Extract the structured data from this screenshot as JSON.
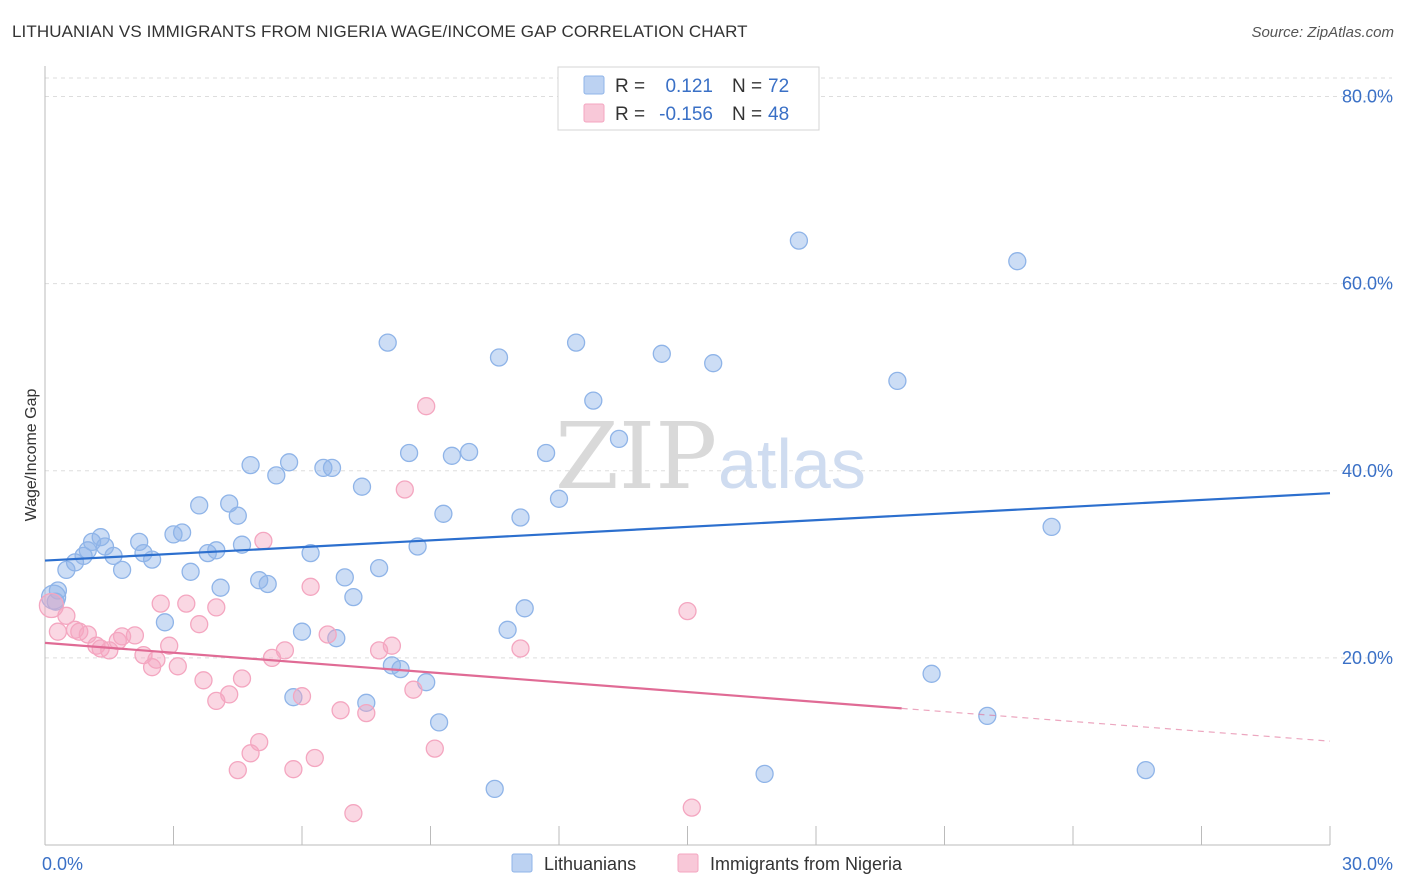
{
  "title": "LITHUANIAN VS IMMIGRANTS FROM NIGERIA WAGE/INCOME GAP CORRELATION CHART",
  "source": "Source: ZipAtlas.com",
  "watermark": {
    "part1": "ZIP",
    "part2": "atlas"
  },
  "legend": {
    "r_label": "R =",
    "n_label": "N =",
    "rows": [
      {
        "r": "0.121",
        "n": "72"
      },
      {
        "r": "-0.156",
        "n": "48"
      }
    ]
  },
  "chart_data": {
    "type": "scatter",
    "title": "LITHUANIAN VS IMMIGRANTS FROM NIGERIA WAGE/INCOME GAP CORRELATION CHART",
    "xlabel": "",
    "ylabel": "Wage/Income Gap",
    "xlim": [
      0,
      30
    ],
    "ylim": [
      0,
      80
    ],
    "x_tick_labels": [
      "0.0%",
      "30.0%"
    ],
    "y_ticks": [
      20,
      40,
      60,
      80
    ],
    "y_tick_labels": [
      "20.0%",
      "40.0%",
      "60.0%",
      "80.0%"
    ],
    "grid": true,
    "legend_position": "top-center",
    "series": [
      {
        "name": "Lithuanians",
        "color": "#8fb4e8",
        "line_color": "#2c6fce",
        "trend": {
          "x0": 0,
          "y0": 30.4,
          "x1": 30,
          "y1": 37.6
        },
        "points": [
          [
            0.2,
            26.5
          ],
          [
            0.3,
            27.2
          ],
          [
            0.5,
            29.4
          ],
          [
            0.7,
            30.2
          ],
          [
            0.9,
            30.9
          ],
          [
            1.1,
            32.4
          ],
          [
            1.3,
            32.9
          ],
          [
            1.4,
            31.9
          ],
          [
            1.6,
            30.9
          ],
          [
            1.8,
            29.4
          ],
          [
            2.2,
            32.4
          ],
          [
            2.3,
            31.2
          ],
          [
            2.5,
            30.5
          ],
          [
            2.8,
            23.8
          ],
          [
            3.0,
            33.2
          ],
          [
            3.2,
            33.4
          ],
          [
            3.4,
            29.2
          ],
          [
            3.6,
            36.3
          ],
          [
            3.8,
            31.2
          ],
          [
            4.0,
            31.5
          ],
          [
            4.1,
            27.5
          ],
          [
            4.3,
            36.5
          ],
          [
            4.5,
            35.2
          ],
          [
            4.6,
            32.1
          ],
          [
            4.8,
            40.6
          ],
          [
            5.0,
            28.3
          ],
          [
            5.2,
            27.9
          ],
          [
            5.4,
            39.5
          ],
          [
            5.7,
            40.9
          ],
          [
            5.8,
            15.8
          ],
          [
            6.0,
            22.8
          ],
          [
            6.2,
            31.2
          ],
          [
            6.5,
            40.3
          ],
          [
            6.7,
            40.3
          ],
          [
            6.8,
            22.1
          ],
          [
            7.0,
            28.6
          ],
          [
            7.2,
            26.5
          ],
          [
            7.4,
            38.3
          ],
          [
            7.5,
            15.2
          ],
          [
            7.8,
            29.6
          ],
          [
            8.0,
            53.7
          ],
          [
            8.1,
            19.2
          ],
          [
            8.3,
            18.8
          ],
          [
            8.5,
            41.9
          ],
          [
            8.7,
            31.9
          ],
          [
            8.9,
            17.4
          ],
          [
            9.2,
            13.1
          ],
          [
            9.3,
            35.4
          ],
          [
            9.5,
            41.6
          ],
          [
            9.9,
            42.0
          ],
          [
            10.5,
            6.0
          ],
          [
            10.6,
            52.1
          ],
          [
            10.8,
            23.0
          ],
          [
            11.1,
            35.0
          ],
          [
            11.2,
            25.3
          ],
          [
            11.7,
            41.9
          ],
          [
            12.0,
            37.0
          ],
          [
            12.4,
            53.7
          ],
          [
            12.8,
            47.5
          ],
          [
            13.4,
            43.4
          ],
          [
            14.4,
            52.5
          ],
          [
            15.6,
            51.5
          ],
          [
            16.8,
            7.6
          ],
          [
            17.6,
            64.6
          ],
          [
            19.9,
            49.6
          ],
          [
            20.7,
            18.3
          ],
          [
            22.0,
            13.8
          ],
          [
            22.7,
            62.4
          ],
          [
            23.5,
            34.0
          ],
          [
            25.7,
            8.0
          ],
          [
            0.25,
            26.0
          ],
          [
            1.0,
            31.5
          ]
        ]
      },
      {
        "name": "Immigrants from Nigeria",
        "color": "#f4a6c0",
        "line_color": "#e06b95",
        "trend": {
          "x0": 0,
          "y0": 21.6,
          "x1": 20.0,
          "y1": 14.6
        },
        "trend_dashed": {
          "x0": 20.0,
          "y0": 14.6,
          "x1": 30,
          "y1": 11.1
        },
        "points": [
          [
            0.15,
            25.6
          ],
          [
            0.3,
            22.8
          ],
          [
            0.5,
            24.5
          ],
          [
            0.7,
            23.0
          ],
          [
            0.8,
            22.8
          ],
          [
            1.0,
            22.5
          ],
          [
            1.2,
            21.3
          ],
          [
            1.3,
            21.0
          ],
          [
            1.5,
            20.8
          ],
          [
            1.7,
            21.8
          ],
          [
            1.8,
            22.3
          ],
          [
            2.1,
            22.4
          ],
          [
            2.3,
            20.3
          ],
          [
            2.5,
            19.0
          ],
          [
            2.6,
            19.8
          ],
          [
            2.7,
            25.8
          ],
          [
            2.9,
            21.3
          ],
          [
            3.1,
            19.1
          ],
          [
            3.3,
            25.8
          ],
          [
            3.6,
            23.6
          ],
          [
            3.7,
            17.6
          ],
          [
            4.0,
            15.4
          ],
          [
            4.0,
            25.4
          ],
          [
            4.3,
            16.1
          ],
          [
            4.5,
            8.0
          ],
          [
            4.6,
            17.8
          ],
          [
            4.8,
            9.8
          ],
          [
            5.0,
            11.0
          ],
          [
            5.1,
            32.5
          ],
          [
            5.3,
            20.0
          ],
          [
            5.6,
            20.8
          ],
          [
            5.8,
            8.1
          ],
          [
            6.0,
            15.9
          ],
          [
            6.2,
            27.6
          ],
          [
            6.3,
            9.3
          ],
          [
            6.6,
            22.5
          ],
          [
            6.9,
            14.4
          ],
          [
            7.2,
            3.4
          ],
          [
            7.5,
            14.1
          ],
          [
            7.8,
            20.8
          ],
          [
            8.1,
            21.3
          ],
          [
            8.4,
            38.0
          ],
          [
            8.6,
            16.6
          ],
          [
            8.9,
            46.9
          ],
          [
            9.1,
            10.3
          ],
          [
            11.1,
            21.0
          ],
          [
            15.0,
            25.0
          ],
          [
            15.1,
            4.0
          ]
        ]
      }
    ]
  }
}
